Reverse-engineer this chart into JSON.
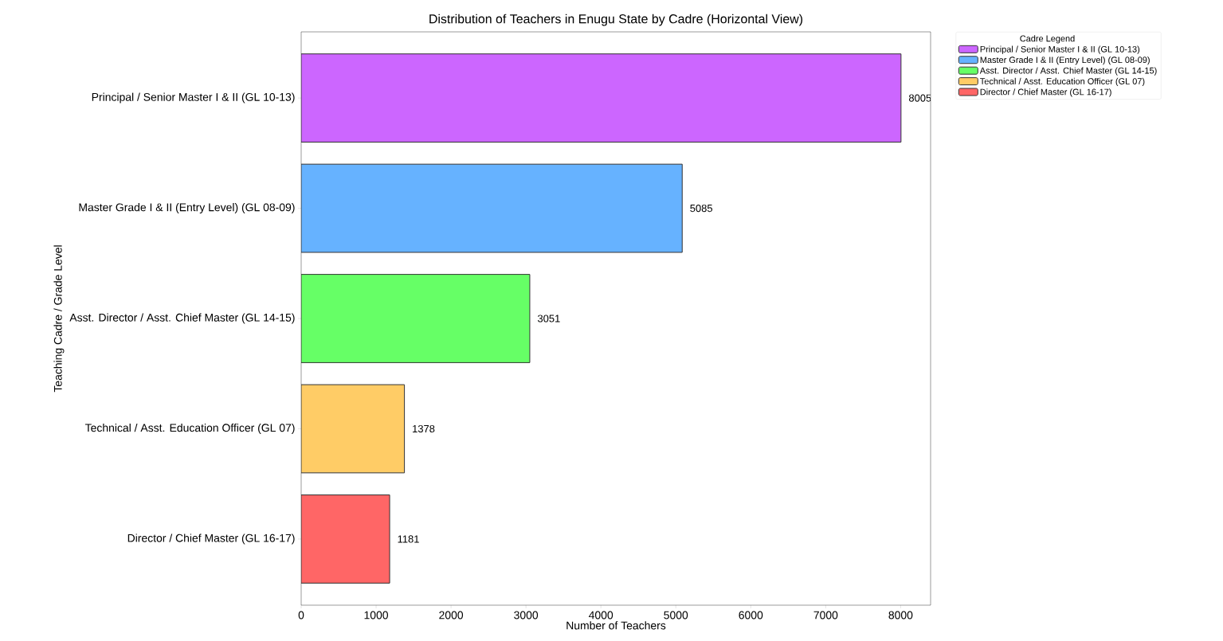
{
  "chart_data": {
    "type": "bar",
    "orientation": "horizontal",
    "title": "Distribution of Teachers in Enugu State by Cadre (Horizontal View)",
    "xlabel": "Number of Teachers",
    "ylabel": "Teaching Cadre / Grade Level",
    "legend_title": "Cadre Legend",
    "categories": [
      "Principal / Senior Master I & II (GL 10-13)",
      "Master Grade I & II (Entry Level) (GL 08-09)",
      "Asst. Director / Asst. Chief Master (GL 14-15)",
      "Technical / Asst. Education Officer (GL 07)",
      "Director / Chief Master (GL 16-17)"
    ],
    "series": [
      {
        "name": "Principal / Senior Master I & II (GL 10-13)",
        "color": "#cc66ff",
        "values": [
          8005,
          null,
          null,
          null,
          null
        ]
      },
      {
        "name": "Master Grade I & II (Entry Level) (GL 08-09)",
        "color": "#66b2ff",
        "values": [
          null,
          5085,
          null,
          null,
          null
        ]
      },
      {
        "name": "Asst. Director / Asst. Chief Master (GL 14-15)",
        "color": "#66ff66",
        "values": [
          null,
          null,
          3051,
          null,
          null
        ]
      },
      {
        "name": "Technical / Asst. Education Officer (GL 07)",
        "color": "#ffcc66",
        "values": [
          null,
          null,
          null,
          1378,
          null
        ]
      },
      {
        "name": "Director / Chief Master (GL 16-17)",
        "color": "#ff6666",
        "values": [
          null,
          null,
          null,
          null,
          1181
        ]
      }
    ],
    "xlim": [
      0,
      8400
    ],
    "xticks": [
      0,
      1000,
      2000,
      3000,
      4000,
      5000,
      6000,
      7000,
      8000
    ],
    "data_labels": true,
    "grid": false,
    "legend": "top right"
  }
}
